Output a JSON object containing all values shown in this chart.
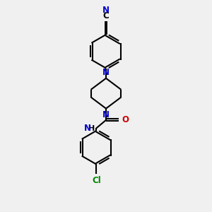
{
  "background_color": "#f0f0f0",
  "bond_color": "#000000",
  "N_color": "#0000cc",
  "O_color": "#cc0000",
  "Cl_color": "#008800",
  "line_width": 1.5,
  "font_size": 8.5,
  "figsize": [
    3.0,
    3.0
  ],
  "dpi": 100,
  "xlim": [
    0,
    10
  ],
  "ylim": [
    0,
    10
  ]
}
